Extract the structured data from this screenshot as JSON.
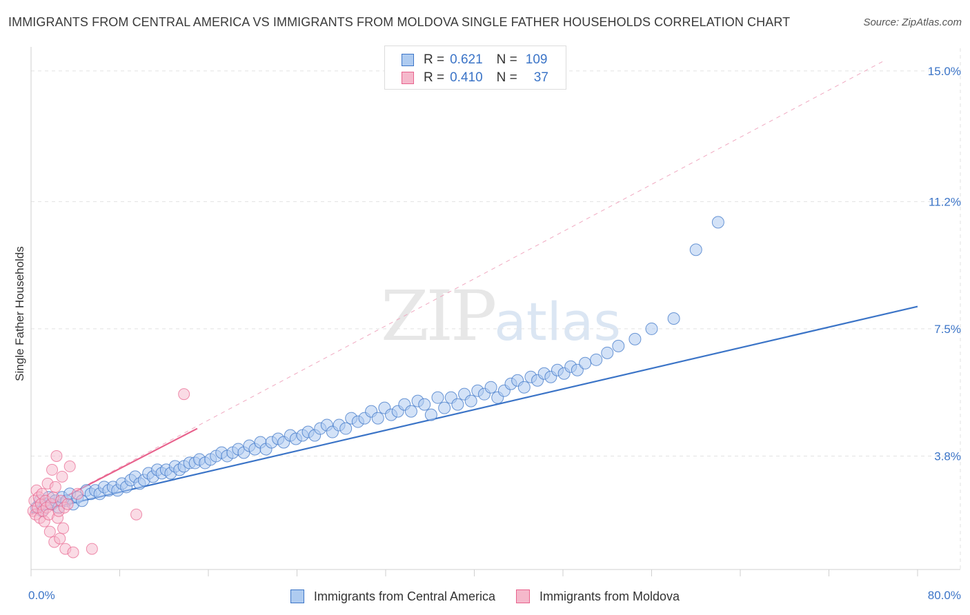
{
  "title": "IMMIGRANTS FROM CENTRAL AMERICA VS IMMIGRANTS FROM MOLDOVA SINGLE FATHER HOUSEHOLDS CORRELATION CHART",
  "source": "Source: ZipAtlas.com",
  "watermark": {
    "zip": "ZIP",
    "atlas": "atlas"
  },
  "colors": {
    "blue": "#3b74c7",
    "blue_fill": "#aecbf0",
    "pink": "#e8618c",
    "pink_fill": "#f5b8cb",
    "grid": "#e2e2e2"
  },
  "legend_top": {
    "rows": [
      {
        "r_label": "R =",
        "r_value": "0.621",
        "n_label": "N =",
        "n_value": "109"
      },
      {
        "r_label": "R =",
        "r_value": "0.410",
        "n_label": "N =",
        "n_value": "37"
      }
    ]
  },
  "legend_bottom": {
    "items": [
      {
        "label": "Immigrants from Central America"
      },
      {
        "label": "Immigrants from Moldova"
      }
    ]
  },
  "chart_data": {
    "type": "scatter",
    "title": "IMMIGRANTS FROM CENTRAL AMERICA VS IMMIGRANTS FROM MOLDOVA SINGLE FATHER HOUSEHOLDS CORRELATION CHART",
    "xlabel": "",
    "ylabel": "Single Father Households",
    "xlim": [
      0,
      80
    ],
    "ylim": [
      0.5,
      15.5
    ],
    "y_ticks": [
      3.8,
      7.5,
      11.2,
      15.0
    ],
    "y_tick_labels": [
      "3.8%",
      "7.5%",
      "11.2%",
      "15.0%"
    ],
    "x_tick_labels": [
      "0.0%",
      "80.0%"
    ],
    "grid": true,
    "series": [
      {
        "name": "Immigrants from Central America",
        "r": 0.621,
        "n": 109,
        "trend": {
          "x": [
            0,
            80
          ],
          "y": [
            2.15,
            8.15
          ]
        },
        "points": [
          [
            0.5,
            2.3
          ],
          [
            0.8,
            2.5
          ],
          [
            1.0,
            2.2
          ],
          [
            1.3,
            2.4
          ],
          [
            1.6,
            2.6
          ],
          [
            1.9,
            2.4
          ],
          [
            2.2,
            2.5
          ],
          [
            2.5,
            2.3
          ],
          [
            2.8,
            2.6
          ],
          [
            3.2,
            2.5
          ],
          [
            3.5,
            2.7
          ],
          [
            3.8,
            2.4
          ],
          [
            4.2,
            2.6
          ],
          [
            4.6,
            2.5
          ],
          [
            5.0,
            2.8
          ],
          [
            5.4,
            2.7
          ],
          [
            5.8,
            2.8
          ],
          [
            6.2,
            2.7
          ],
          [
            6.6,
            2.9
          ],
          [
            7.0,
            2.8
          ],
          [
            7.4,
            2.9
          ],
          [
            7.8,
            2.8
          ],
          [
            8.2,
            3.0
          ],
          [
            8.6,
            2.9
          ],
          [
            9.0,
            3.1
          ],
          [
            9.4,
            3.2
          ],
          [
            9.8,
            3.0
          ],
          [
            10.2,
            3.1
          ],
          [
            10.6,
            3.3
          ],
          [
            11.0,
            3.2
          ],
          [
            11.4,
            3.4
          ],
          [
            11.8,
            3.3
          ],
          [
            12.2,
            3.4
          ],
          [
            12.6,
            3.3
          ],
          [
            13.0,
            3.5
          ],
          [
            13.4,
            3.4
          ],
          [
            13.8,
            3.5
          ],
          [
            14.3,
            3.6
          ],
          [
            14.8,
            3.6
          ],
          [
            15.2,
            3.7
          ],
          [
            15.7,
            3.6
          ],
          [
            16.2,
            3.7
          ],
          [
            16.7,
            3.8
          ],
          [
            17.2,
            3.9
          ],
          [
            17.7,
            3.8
          ],
          [
            18.2,
            3.9
          ],
          [
            18.7,
            4.0
          ],
          [
            19.2,
            3.9
          ],
          [
            19.7,
            4.1
          ],
          [
            20.2,
            4.0
          ],
          [
            20.7,
            4.2
          ],
          [
            21.2,
            4.0
          ],
          [
            21.7,
            4.2
          ],
          [
            22.3,
            4.3
          ],
          [
            22.8,
            4.2
          ],
          [
            23.4,
            4.4
          ],
          [
            23.9,
            4.3
          ],
          [
            24.5,
            4.4
          ],
          [
            25.0,
            4.5
          ],
          [
            25.6,
            4.4
          ],
          [
            26.1,
            4.6
          ],
          [
            26.7,
            4.7
          ],
          [
            27.2,
            4.5
          ],
          [
            27.8,
            4.7
          ],
          [
            28.4,
            4.6
          ],
          [
            28.9,
            4.9
          ],
          [
            29.5,
            4.8
          ],
          [
            30.1,
            4.9
          ],
          [
            30.7,
            5.1
          ],
          [
            31.3,
            4.9
          ],
          [
            31.9,
            5.2
          ],
          [
            32.5,
            5.0
          ],
          [
            33.1,
            5.1
          ],
          [
            33.7,
            5.3
          ],
          [
            34.3,
            5.1
          ],
          [
            34.9,
            5.4
          ],
          [
            35.5,
            5.3
          ],
          [
            36.1,
            5.0
          ],
          [
            36.7,
            5.5
          ],
          [
            37.3,
            5.2
          ],
          [
            37.9,
            5.5
          ],
          [
            38.5,
            5.3
          ],
          [
            39.1,
            5.6
          ],
          [
            39.7,
            5.4
          ],
          [
            40.3,
            5.7
          ],
          [
            40.9,
            5.6
          ],
          [
            41.5,
            5.8
          ],
          [
            42.1,
            5.5
          ],
          [
            42.7,
            5.7
          ],
          [
            43.3,
            5.9
          ],
          [
            43.9,
            6.0
          ],
          [
            44.5,
            5.8
          ],
          [
            45.1,
            6.1
          ],
          [
            45.7,
            6.0
          ],
          [
            46.3,
            6.2
          ],
          [
            46.9,
            6.1
          ],
          [
            47.5,
            6.3
          ],
          [
            48.1,
            6.2
          ],
          [
            48.7,
            6.4
          ],
          [
            49.3,
            6.3
          ],
          [
            50.0,
            6.5
          ],
          [
            51.0,
            6.6
          ],
          [
            52.0,
            6.8
          ],
          [
            53.0,
            7.0
          ],
          [
            54.5,
            7.2
          ],
          [
            56.0,
            7.5
          ],
          [
            58.0,
            7.8
          ],
          [
            60.0,
            9.8
          ],
          [
            62.0,
            10.6
          ]
        ]
      },
      {
        "name": "Immigrants from Moldova",
        "r": 0.41,
        "n": 37,
        "trend": {
          "x": [
            0,
            15
          ],
          "y": [
            2.1,
            4.6
          ]
        },
        "trend_extended": {
          "x": [
            0,
            77
          ],
          "y": [
            2.1,
            15.3
          ]
        },
        "points": [
          [
            0.2,
            2.2
          ],
          [
            0.3,
            2.5
          ],
          [
            0.4,
            2.1
          ],
          [
            0.5,
            2.8
          ],
          [
            0.6,
            2.3
          ],
          [
            0.7,
            2.6
          ],
          [
            0.8,
            2.0
          ],
          [
            0.9,
            2.4
          ],
          [
            1.0,
            2.7
          ],
          [
            1.1,
            2.2
          ],
          [
            1.2,
            1.9
          ],
          [
            1.3,
            2.5
          ],
          [
            1.4,
            2.3
          ],
          [
            1.5,
            3.0
          ],
          [
            1.6,
            2.1
          ],
          [
            1.7,
            1.6
          ],
          [
            1.8,
            2.4
          ],
          [
            1.9,
            3.4
          ],
          [
            2.0,
            2.6
          ],
          [
            2.1,
            1.3
          ],
          [
            2.2,
            2.9
          ],
          [
            2.3,
            3.8
          ],
          [
            2.4,
            2.0
          ],
          [
            2.5,
            2.2
          ],
          [
            2.6,
            1.4
          ],
          [
            2.7,
            2.5
          ],
          [
            2.8,
            3.2
          ],
          [
            2.9,
            1.7
          ],
          [
            3.0,
            2.3
          ],
          [
            3.1,
            1.1
          ],
          [
            3.3,
            2.4
          ],
          [
            3.5,
            3.5
          ],
          [
            3.8,
            1.0
          ],
          [
            4.2,
            2.7
          ],
          [
            5.5,
            1.1
          ],
          [
            9.5,
            2.1
          ],
          [
            13.8,
            5.6
          ]
        ]
      }
    ]
  }
}
